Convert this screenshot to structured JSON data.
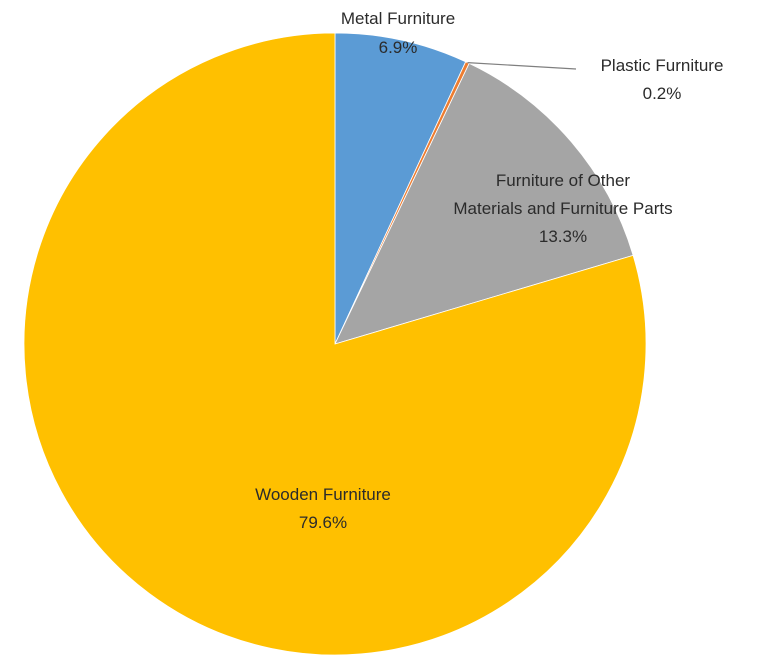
{
  "chart_data": {
    "type": "pie",
    "title": "",
    "slices": [
      {
        "label": "Metal Furniture",
        "value": 6.9,
        "value_label": "6.9%",
        "color": "#5b9bd5"
      },
      {
        "label": "Plastic Furniture",
        "value": 0.2,
        "value_label": "0.2%",
        "color": "#ed7d31"
      },
      {
        "label": "Furniture of Other Materials and Furniture Parts",
        "value": 13.3,
        "value_label": "13.3%",
        "color": "#a5a5a5"
      },
      {
        "label": "Wooden Furniture",
        "value": 79.6,
        "value_label": "79.6%",
        "color": "#ffc000"
      }
    ],
    "start": "12 o'clock",
    "direction": "clockwise",
    "legend": "none"
  }
}
